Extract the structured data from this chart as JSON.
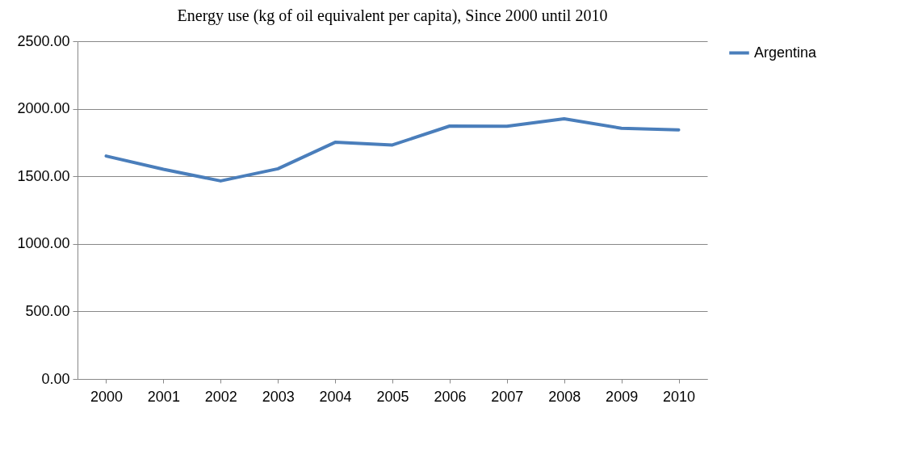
{
  "chart_data": {
    "type": "line",
    "title": "Energy use (kg of oil equivalent per capita), Since 2000 until 2010",
    "categories": [
      "2000",
      "2001",
      "2002",
      "2003",
      "2004",
      "2005",
      "2006",
      "2007",
      "2008",
      "2009",
      "2010"
    ],
    "series": [
      {
        "name": "Argentina",
        "color": "#4a7ebb",
        "values": [
          1650,
          1552,
          1466,
          1556,
          1752,
          1732,
          1872,
          1870,
          1926,
          1856,
          1844
        ]
      }
    ],
    "ylim": [
      0,
      2500
    ],
    "yticks": [
      {
        "value": 0,
        "label": "0.00"
      },
      {
        "value": 500,
        "label": "500.00"
      },
      {
        "value": 1000,
        "label": "1000.00"
      },
      {
        "value": 1500,
        "label": "1500.00"
      },
      {
        "value": 2000,
        "label": "2000.00"
      },
      {
        "value": 2500,
        "label": "2500.00"
      }
    ],
    "grid": "y",
    "legend": "right",
    "marker": "none",
    "line_style": "solid"
  }
}
